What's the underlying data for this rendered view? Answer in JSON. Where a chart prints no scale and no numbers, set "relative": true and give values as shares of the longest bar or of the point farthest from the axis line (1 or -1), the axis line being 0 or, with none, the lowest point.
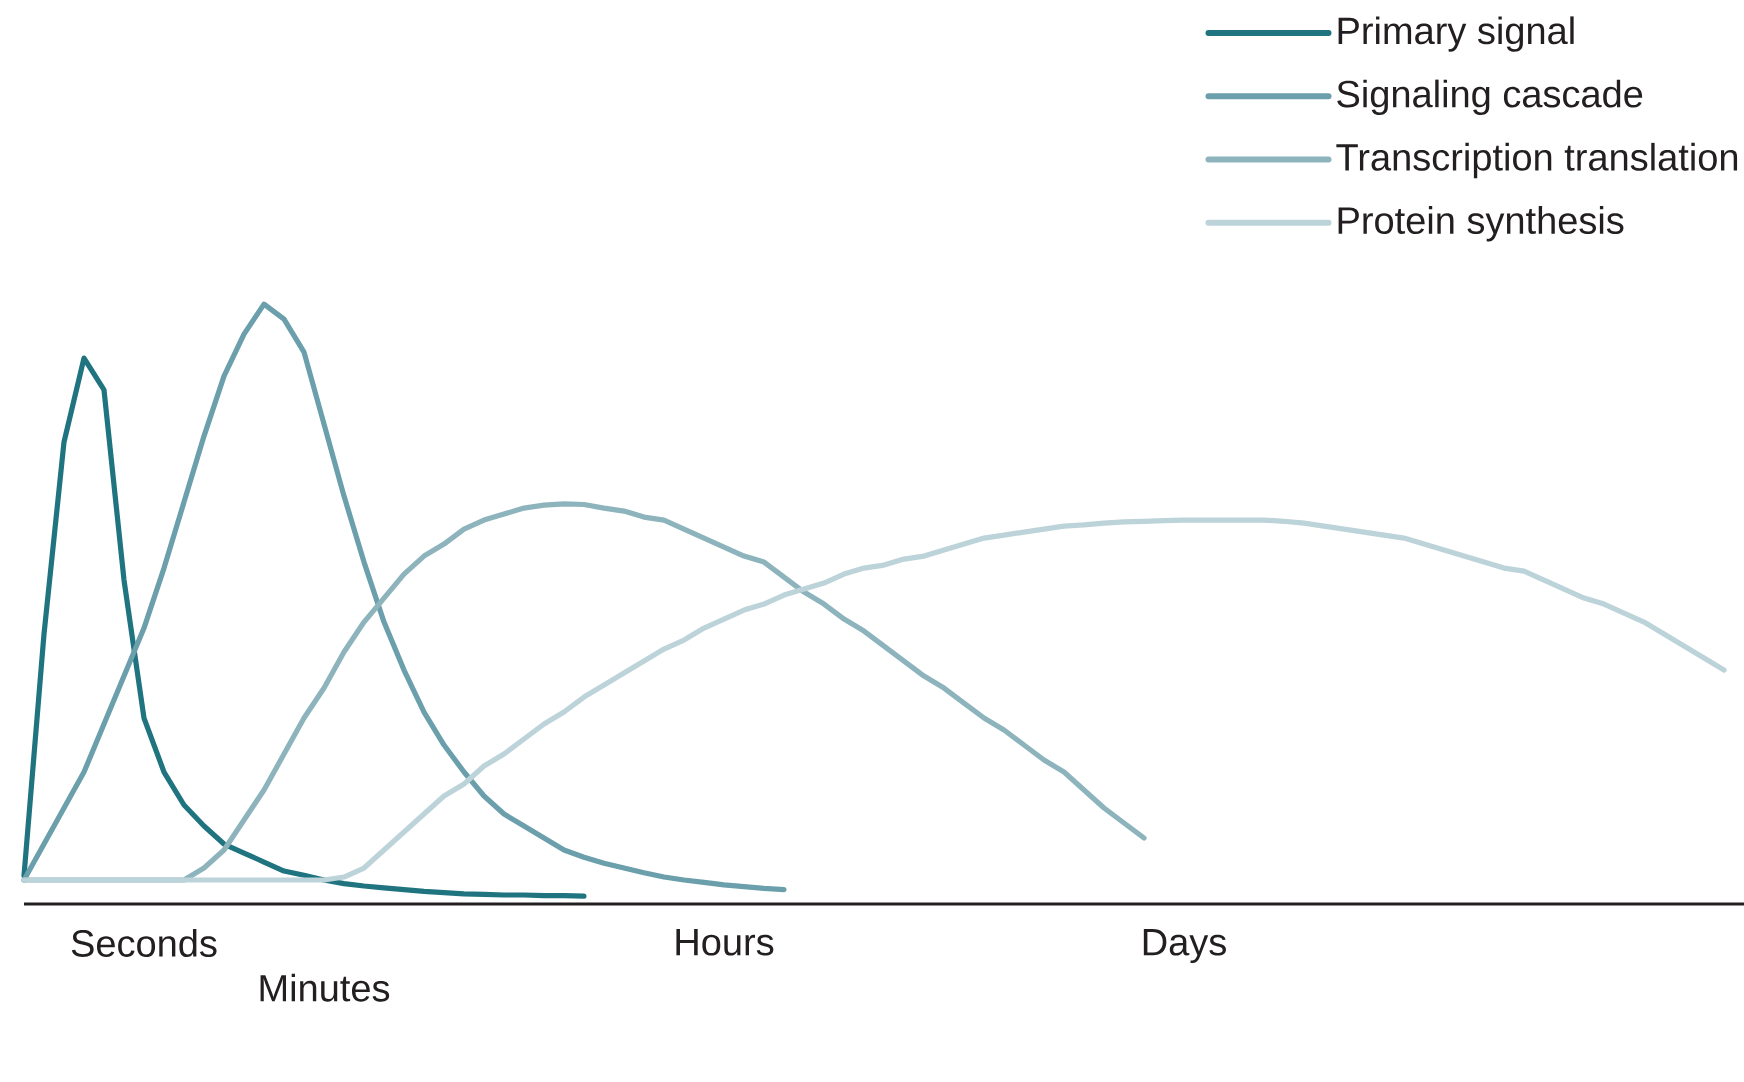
{
  "chart_data": {
    "type": "line",
    "relative": true,
    "legend": "top right",
    "marker": "none",
    "line_style": "solid",
    "categories": [
      null,
      null,
      null,
      null,
      null,
      null,
      "Seconds",
      null,
      null,
      null,
      null,
      null,
      null,
      null,
      null,
      "Minutes",
      null,
      null,
      null,
      null,
      null,
      null,
      null,
      null,
      null,
      null,
      null,
      null,
      null,
      null,
      null,
      null,
      null,
      null,
      null,
      "Hours",
      null,
      null,
      null,
      null,
      null,
      null,
      null,
      null,
      null,
      null,
      null,
      null,
      null,
      null,
      null,
      null,
      null,
      null,
      null,
      null,
      null,
      null,
      "Days",
      null,
      null,
      null,
      null,
      null,
      null,
      null,
      null,
      null,
      null,
      null,
      null,
      null,
      null,
      null,
      null,
      null,
      null,
      null,
      null,
      null,
      null,
      null,
      null,
      null,
      null,
      null,
      null
    ],
    "series": [
      {
        "name": "Primary signal",
        "color": "#1f7480",
        "values": [
          0.047,
          0.45,
          0.77,
          0.91,
          0.857,
          0.54,
          0.31,
          0.22,
          0.165,
          0.13,
          0.1,
          0.085,
          0.07,
          0.055,
          0.048,
          0.04,
          0.034,
          0.03,
          0.027,
          0.024,
          0.021,
          0.019,
          0.017,
          0.016,
          0.015,
          0.015,
          0.014,
          0.014,
          0.013,
          null,
          null,
          null,
          null,
          null,
          null,
          null,
          null,
          null,
          null,
          null,
          null,
          null,
          null,
          null,
          null,
          null,
          null,
          null,
          null,
          null,
          null,
          null,
          null,
          null,
          null,
          null,
          null,
          null,
          null,
          null,
          null,
          null,
          null,
          null,
          null,
          null,
          null,
          null,
          null,
          null,
          null,
          null,
          null,
          null,
          null,
          null,
          null,
          null,
          null,
          null,
          null,
          null,
          null,
          null,
          null,
          null,
          null
        ]
      },
      {
        "name": "Signaling cascade",
        "color": "#6a9fab",
        "values": [
          0.04,
          0.1,
          0.16,
          0.22,
          0.3,
          0.38,
          0.46,
          0.56,
          0.67,
          0.78,
          0.88,
          0.95,
          1.0,
          0.975,
          0.92,
          0.8,
          0.68,
          0.57,
          0.47,
          0.39,
          0.32,
          0.265,
          0.22,
          0.18,
          0.15,
          0.13,
          0.11,
          0.09,
          0.078,
          0.068,
          0.06,
          0.052,
          0.045,
          0.04,
          0.036,
          0.032,
          0.029,
          0.026,
          0.024,
          null,
          null,
          null,
          null,
          null,
          null,
          null,
          null,
          null,
          null,
          null,
          null,
          null,
          null,
          null,
          null,
          null,
          null,
          null,
          null,
          null,
          null,
          null,
          null,
          null,
          null,
          null,
          null,
          null,
          null,
          null,
          null,
          null,
          null,
          null,
          null,
          null,
          null,
          null,
          null,
          null,
          null,
          null,
          null,
          null,
          null,
          null,
          null
        ]
      },
      {
        "name": "Transcription translation",
        "color": "#8db4bd",
        "values": [
          0.04,
          0.04,
          0.04,
          0.04,
          0.04,
          0.04,
          0.04,
          0.04,
          0.04,
          0.06,
          0.09,
          0.14,
          0.19,
          0.25,
          0.31,
          0.36,
          0.42,
          0.47,
          0.51,
          0.55,
          0.58,
          0.6,
          0.625,
          0.64,
          0.65,
          0.66,
          0.665,
          0.667,
          0.666,
          0.66,
          0.655,
          0.645,
          0.64,
          0.625,
          0.61,
          0.595,
          0.58,
          0.57,
          0.545,
          0.52,
          0.5,
          0.475,
          0.455,
          0.43,
          0.405,
          0.38,
          0.36,
          0.335,
          0.31,
          0.29,
          0.265,
          0.24,
          0.22,
          0.19,
          0.16,
          0.135,
          0.11,
          null,
          null,
          null,
          null,
          null,
          null,
          null,
          null,
          null,
          null,
          null,
          null,
          null,
          null,
          null,
          null,
          null,
          null,
          null,
          null,
          null,
          null,
          null,
          null,
          null,
          null,
          null,
          null,
          null,
          null
        ]
      },
      {
        "name": "Protein synthesis",
        "color": "#bcd3d9",
        "values": [
          0.04,
          0.04,
          0.04,
          0.04,
          0.04,
          0.04,
          0.04,
          0.04,
          0.04,
          0.04,
          0.04,
          0.04,
          0.04,
          0.04,
          0.04,
          0.04,
          0.045,
          0.06,
          0.09,
          0.12,
          0.15,
          0.18,
          0.2,
          0.23,
          0.25,
          0.275,
          0.3,
          0.32,
          0.345,
          0.365,
          0.385,
          0.405,
          0.425,
          0.44,
          0.46,
          0.475,
          0.49,
          0.5,
          0.515,
          0.525,
          0.535,
          0.55,
          0.56,
          0.565,
          0.575,
          0.58,
          0.59,
          0.6,
          0.61,
          0.615,
          0.62,
          0.625,
          0.63,
          0.632,
          0.635,
          0.637,
          0.638,
          0.639,
          0.64,
          0.64,
          0.64,
          0.64,
          0.64,
          0.638,
          0.635,
          0.63,
          0.625,
          0.62,
          0.615,
          0.61,
          0.6,
          0.59,
          0.58,
          0.57,
          0.56,
          0.555,
          0.54,
          0.525,
          0.51,
          0.5,
          0.485,
          0.47,
          0.45,
          0.43,
          0.41,
          0.39,
          null
        ]
      }
    ]
  }
}
